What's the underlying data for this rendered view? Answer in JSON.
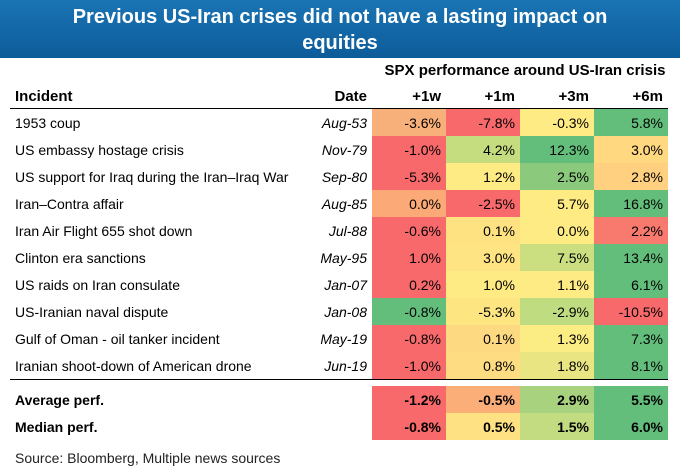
{
  "title": [
    "Previous US-Iran crises did not have a lasting impact on",
    "equities"
  ],
  "group_header": "SPX performance around US-Iran crisis",
  "columns": {
    "incident": "Incident",
    "date": "Date",
    "w1": "+1w",
    "m1": "+1m",
    "m3": "+3m",
    "m6": "+6m"
  },
  "rows": [
    {
      "incident": "1953 coup",
      "date": "Aug-53",
      "values": [
        "-3.6%",
        "-7.8%",
        "-0.3%",
        "5.8%"
      ],
      "colors": [
        "#f8b07b",
        "#f8696b",
        "#ffeb84",
        "#63be7b"
      ]
    },
    {
      "incident": "US embassy hostage crisis",
      "date": "Nov-79",
      "values": [
        "-1.0%",
        "4.2%",
        "12.3%",
        "3.0%"
      ],
      "colors": [
        "#f8696b",
        "#c6dd7f",
        "#63be7b",
        "#ffd880"
      ]
    },
    {
      "incident": "US support for Iraq during the Iran–Iraq War",
      "date": "Sep-80",
      "values": [
        "-5.3%",
        "1.2%",
        "2.5%",
        "2.8%"
      ],
      "colors": [
        "#f8696b",
        "#ffeb84",
        "#8bca7d",
        "#ffd07f"
      ]
    },
    {
      "incident": "Iran–Contra affair",
      "date": "Aug-85",
      "values": [
        "0.0%",
        "-2.5%",
        "5.7%",
        "16.8%"
      ],
      "colors": [
        "#fbaa77",
        "#f8696b",
        "#ffeb84",
        "#63be7b"
      ]
    },
    {
      "incident": "Iran Air Flight 655 shot down",
      "date": "Jul-88",
      "values": [
        "-0.6%",
        "0.1%",
        "0.0%",
        "2.2%"
      ],
      "colors": [
        "#f8696b",
        "#fee282",
        "#ffeb84",
        "#f87a6e"
      ]
    },
    {
      "incident": "Clinton era sanctions",
      "date": "May-95",
      "values": [
        "1.0%",
        "3.0%",
        "7.5%",
        "13.4%"
      ],
      "colors": [
        "#f8696b",
        "#fee482",
        "#cbdf81",
        "#63be7b"
      ]
    },
    {
      "incident": "US raids on Iran consulate",
      "date": "Jan-07",
      "values": [
        "0.2%",
        "1.0%",
        "1.1%",
        "6.1%"
      ],
      "colors": [
        "#f8696b",
        "#ffeb84",
        "#ffeb84",
        "#63be7b"
      ]
    },
    {
      "incident": "US-Iranian naval dispute",
      "date": "Jan-08",
      "values": [
        "-0.8%",
        "-5.3%",
        "-2.9%",
        "-10.5%"
      ],
      "colors": [
        "#63be7b",
        "#fde582",
        "#c0dc81",
        "#f8696b"
      ]
    },
    {
      "incident": "Gulf of Oman - oil tanker incident",
      "date": "May-19",
      "values": [
        "-0.8%",
        "0.1%",
        "1.3%",
        "7.3%"
      ],
      "colors": [
        "#f8696b",
        "#fdd981",
        "#fbec84",
        "#63be7b"
      ]
    },
    {
      "incident": "Iranian shoot-down of American drone",
      "date": "Jun-19",
      "values": [
        "-1.0%",
        "0.8%",
        "1.8%",
        "8.1%"
      ],
      "colors": [
        "#f8696b",
        "#fedc81",
        "#e9e583",
        "#63be7b"
      ]
    }
  ],
  "summary": [
    {
      "label": "Average perf.",
      "values": [
        "-1.2%",
        "-0.5%",
        "2.9%",
        "5.5%"
      ],
      "colors": [
        "#f8696b",
        "#fbae78",
        "#a9d27f",
        "#63be7b"
      ]
    },
    {
      "label": "Median perf.",
      "values": [
        "-0.8%",
        "0.5%",
        "1.5%",
        "6.0%"
      ],
      "colors": [
        "#f8696b",
        "#fee182",
        "#c3dc81",
        "#63be7b"
      ]
    }
  ],
  "source": "Source: Bloomberg, Multiple news sources"
}
